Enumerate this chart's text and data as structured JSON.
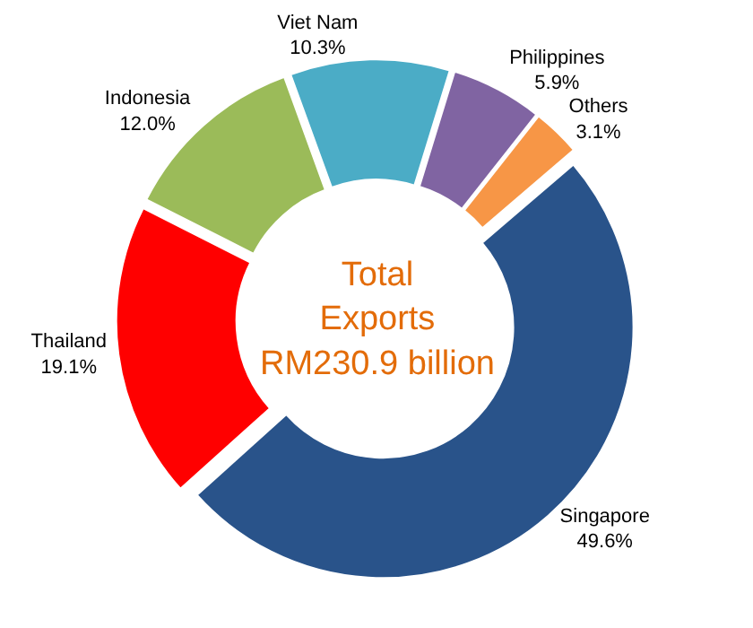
{
  "chart_data": {
    "type": "donut",
    "categories": [
      "Viet Nam",
      "Philippines",
      "Others",
      "Singapore",
      "Thailand",
      "Indonesia"
    ],
    "values": [
      10.3,
      5.9,
      3.1,
      49.6,
      19.1,
      12.0
    ],
    "colors": [
      "#4bacc6",
      "#8064a2",
      "#f79646",
      "#29538a",
      "#ff0000",
      "#9bbb59"
    ],
    "value_labels": [
      "10.3%",
      "5.9%",
      "3.1%",
      "49.6%",
      "19.1%",
      "12.0%"
    ],
    "legend": false,
    "annotations": [
      "Total Exports RM230.9 billion"
    ]
  }
}
